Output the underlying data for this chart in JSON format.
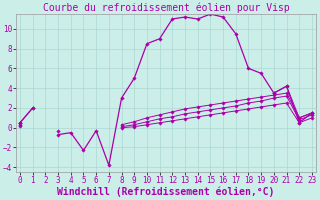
{
  "title": "Courbe du refroidissement éolien pour Visp",
  "xlabel": "Windchill (Refroidissement éolien,°C)",
  "bg_color": "#cceee8",
  "grid_color": "#aad8d0",
  "line_color": "#aa00aa",
  "x": [
    0,
    1,
    2,
    3,
    4,
    5,
    6,
    7,
    8,
    9,
    10,
    11,
    12,
    13,
    14,
    15,
    16,
    17,
    18,
    19,
    20,
    21,
    22,
    23
  ],
  "line1": [
    0.5,
    2.0,
    null,
    -0.7,
    -0.5,
    -2.3,
    -0.3,
    -3.8,
    3.0,
    5.0,
    8.5,
    9.0,
    11.0,
    11.2,
    11.0,
    11.5,
    11.2,
    9.5,
    6.0,
    5.5,
    3.5,
    4.2,
    0.5,
    1.5
  ],
  "line2": [
    0.5,
    2.0,
    null,
    -0.3,
    null,
    null,
    null,
    null,
    null,
    null,
    null,
    null,
    null,
    null,
    null,
    null,
    null,
    null,
    null,
    null,
    3.5,
    4.2,
    1.0,
    1.5
  ],
  "line3": [
    0.5,
    null,
    null,
    null,
    null,
    null,
    null,
    null,
    0.3,
    0.6,
    1.0,
    1.3,
    1.6,
    1.9,
    2.1,
    2.3,
    2.5,
    2.7,
    2.9,
    3.1,
    3.3,
    3.5,
    1.0,
    1.5
  ],
  "line4": [
    0.3,
    null,
    null,
    null,
    null,
    null,
    null,
    null,
    0.1,
    0.3,
    0.6,
    0.9,
    1.1,
    1.4,
    1.6,
    1.8,
    2.0,
    2.2,
    2.5,
    2.7,
    3.0,
    3.2,
    0.8,
    1.3
  ],
  "line5": [
    0.2,
    null,
    null,
    null,
    null,
    null,
    null,
    null,
    0.0,
    0.1,
    0.3,
    0.5,
    0.7,
    0.9,
    1.1,
    1.3,
    1.5,
    1.7,
    1.9,
    2.1,
    2.3,
    2.5,
    0.5,
    1.0
  ],
  "ylim": [
    -4.5,
    11.5
  ],
  "xlim": [
    -0.3,
    23.3
  ],
  "yticks": [
    -4,
    -2,
    0,
    2,
    4,
    6,
    8,
    10
  ],
  "xticks": [
    0,
    1,
    2,
    3,
    4,
    5,
    6,
    7,
    8,
    9,
    10,
    11,
    12,
    13,
    14,
    15,
    16,
    17,
    18,
    19,
    20,
    21,
    22,
    23
  ],
  "title_fontsize": 7,
  "xlabel_fontsize": 7,
  "tick_fontsize": 5.5
}
